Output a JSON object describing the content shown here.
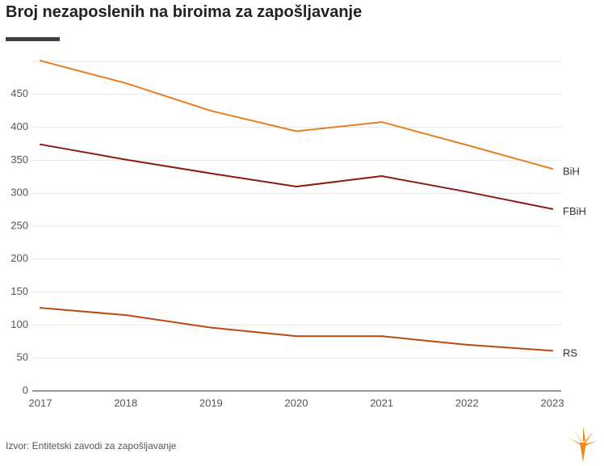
{
  "colors": {
    "grid": "#e6e6e6",
    "axis": "#333333",
    "text": "#555555",
    "accent_bar": "#3f3f3f",
    "logo": "#f08a1e"
  },
  "logo": {
    "icon": "rferl-torch-logo"
  },
  "chart_data": {
    "type": "line",
    "title": "Broj nezaposlenih na biroima za zapošljavanje",
    "xlabel": "",
    "ylabel": "",
    "x": [
      "2017",
      "2018",
      "2019",
      "2020",
      "2021",
      "2022",
      "2023"
    ],
    "y_ticks": [
      0,
      50,
      100,
      150,
      200,
      250,
      300,
      350,
      400,
      450
    ],
    "y_tick_labels": [
      "0",
      "50",
      "100",
      "150",
      "200",
      "250",
      "300",
      "350",
      "400",
      "450"
    ],
    "ylim": [
      0,
      500
    ],
    "grid": true,
    "legend": "inline labels at right end of lines",
    "series": [
      {
        "name": "BiH",
        "color": "#e57f22",
        "values": [
          501,
          467,
          425,
          394,
          408,
          373,
          337
        ]
      },
      {
        "name": "FBiH",
        "color": "#8a1c12",
        "values": [
          374,
          351,
          330,
          310,
          326,
          302,
          276
        ]
      },
      {
        "name": "RS",
        "color": "#b84a10",
        "values": [
          126,
          115,
          96,
          83,
          83,
          70,
          61
        ]
      }
    ],
    "source": "Izvor: Entitetski zavodi za zapošljavanje"
  }
}
